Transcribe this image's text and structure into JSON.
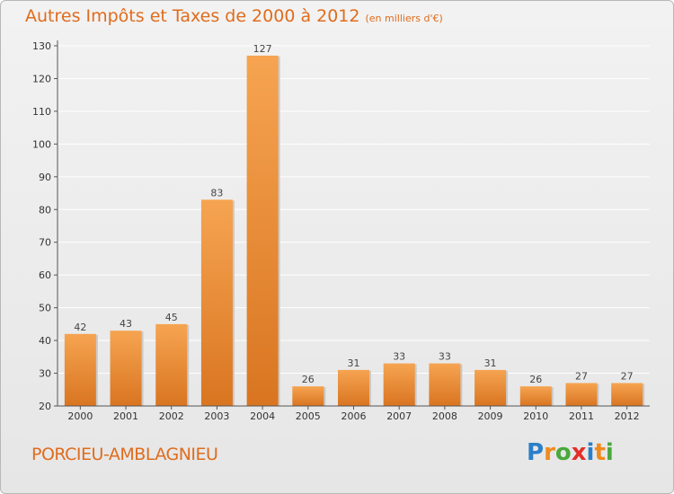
{
  "header": {
    "title": "Autres Impôts et Taxes de 2000 à 2012",
    "subtitle": "(en milliers d'€)"
  },
  "footer": {
    "commune": "PORCIEU-AMBLAGNIEU",
    "logo_letters": [
      "P",
      "r",
      "o",
      "x",
      "i",
      "t",
      "i"
    ],
    "logo_colors": [
      "#2b7fc8",
      "#f08a1c",
      "#4aa83c",
      "#e0302a",
      "#2b7fc8",
      "#f08a1c",
      "#4aa83c"
    ]
  },
  "colors": {
    "bar_light": "#f6a451",
    "bar_dark": "#d97521",
    "accent": "#e06c1c",
    "axis": "#555555",
    "grid": "#ffffff"
  },
  "chart_data": {
    "type": "bar",
    "categories": [
      "2000",
      "2001",
      "2002",
      "2003",
      "2004",
      "2005",
      "2006",
      "2007",
      "2008",
      "2009",
      "2010",
      "2011",
      "2012"
    ],
    "values": [
      42,
      43,
      45,
      83,
      127,
      26,
      31,
      33,
      33,
      31,
      26,
      27,
      27
    ],
    "ylim": [
      20,
      130
    ],
    "yticks": [
      20,
      30,
      40,
      50,
      60,
      70,
      80,
      90,
      100,
      110,
      120,
      130
    ],
    "grid": true,
    "legend": "none"
  }
}
